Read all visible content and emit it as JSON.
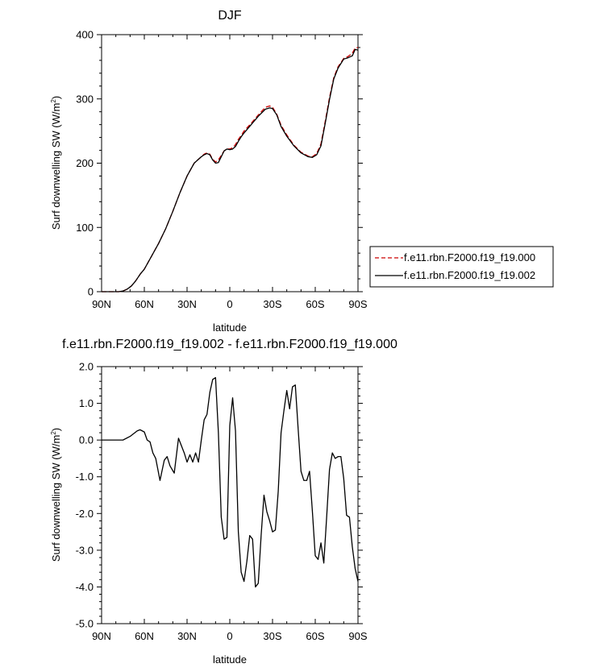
{
  "chart_data": [
    {
      "type": "line",
      "title": "DJF",
      "xlabel": "latitude",
      "ylabel": "Surf downwelling SW (W/m²)",
      "ylabel_main": "Surf downwelling SW (W/m",
      "ylabel_sup": "2",
      "ylabel_end": ")",
      "xlim": [
        -90,
        90
      ],
      "ylim": [
        0,
        400
      ],
      "x_ticks": [
        -90,
        -60,
        -30,
        0,
        30,
        60,
        90
      ],
      "x_tick_labels": [
        "90N",
        "60N",
        "30N",
        "0",
        "30S",
        "60S",
        "90S"
      ],
      "y_ticks": [
        0,
        100,
        200,
        300,
        400
      ],
      "y_tick_labels": [
        "0",
        "100",
        "200",
        "300",
        "400"
      ],
      "legend_position": "right",
      "series": [
        {
          "name": "f.e11.rbn.F2000.f19_f19.000",
          "color": "#cc0000",
          "dash": "dashed",
          "x": [
            -90,
            -85,
            -80,
            -78,
            -75,
            -72,
            -69,
            -66,
            -63,
            -60,
            -55,
            -50,
            -45,
            -40,
            -35,
            -30,
            -25,
            -20,
            -18,
            -16,
            -14,
            -12,
            -10,
            -8,
            -6,
            -4,
            -2,
            0,
            2,
            4,
            6,
            8,
            10,
            15,
            20,
            25,
            28,
            30,
            33,
            36,
            40,
            45,
            50,
            55,
            58,
            61,
            64,
            67,
            70,
            73,
            76,
            80,
            83,
            86,
            88,
            90
          ],
          "y": [
            0,
            0,
            0,
            0,
            1,
            4,
            9,
            17,
            27,
            35,
            55,
            75,
            98,
            125,
            154,
            180,
            200,
            210,
            214,
            216,
            214,
            206,
            202,
            205,
            212,
            219,
            222,
            222,
            224,
            229,
            237,
            243,
            250,
            262,
            275,
            287,
            289,
            287,
            276,
            259,
            244,
            228,
            217,
            211,
            210,
            215,
            230,
            265,
            302,
            333,
            350,
            363,
            366,
            371,
            379,
            380
          ]
        },
        {
          "name": "f.e11.rbn.F2000.f19_f19.002",
          "color": "#000000",
          "dash": "solid",
          "x": [
            -90,
            -85,
            -80,
            -78,
            -75,
            -72,
            -69,
            -66,
            -63,
            -60,
            -55,
            -50,
            -45,
            -40,
            -35,
            -30,
            -25,
            -20,
            -18,
            -16,
            -14,
            -12,
            -10,
            -8,
            -6,
            -4,
            -2,
            0,
            2,
            4,
            6,
            8,
            10,
            15,
            20,
            25,
            28,
            30,
            33,
            36,
            40,
            45,
            50,
            55,
            58,
            61,
            64,
            67,
            70,
            73,
            76,
            80,
            83,
            86,
            88,
            90
          ],
          "y": [
            0,
            0,
            0,
            0,
            1,
            4,
            9,
            17,
            27,
            35,
            55,
            75,
            98,
            125,
            154,
            180,
            200,
            210,
            213,
            215,
            213,
            205,
            200,
            201,
            210,
            219,
            222,
            221,
            222,
            226,
            234,
            241,
            247,
            260,
            273,
            284,
            286,
            285,
            275,
            257,
            242,
            227,
            216,
            210,
            209,
            213,
            227,
            262,
            299,
            331,
            348,
            362,
            364,
            367,
            377,
            376
          ]
        }
      ]
    },
    {
      "type": "line",
      "title": "f.e11.rbn.F2000.f19_f19.002 - f.e11.rbn.F2000.f19_f19.000",
      "xlabel": "latitude",
      "ylabel": "Surf downwelling SW (W/m²)",
      "ylabel_main": "Surf downwelling SW (W/m",
      "ylabel_sup": "2",
      "ylabel_end": ")",
      "xlim": [
        -90,
        90
      ],
      "ylim": [
        -5,
        2
      ],
      "x_ticks": [
        -90,
        -60,
        -30,
        0,
        30,
        60,
        90
      ],
      "x_tick_labels": [
        "90N",
        "60N",
        "30N",
        "0",
        "30S",
        "60S",
        "90S"
      ],
      "y_ticks": [
        -5,
        -4,
        -3,
        -2,
        -1,
        0,
        1,
        2
      ],
      "y_tick_labels": [
        "-5.0",
        "-4.0",
        "-3.0",
        "-2.0",
        "-1.0",
        "0.0",
        "1.0",
        "2.0"
      ],
      "series": [
        {
          "color": "#000000",
          "x": [
            -90,
            -75,
            -70,
            -65,
            -63,
            -60,
            -58,
            -56,
            -54,
            -52,
            -49,
            -46,
            -44,
            -42,
            -39,
            -36,
            -34,
            -32,
            -30,
            -28,
            -26,
            -24,
            -22,
            -20,
            -18,
            -16,
            -14,
            -12,
            -10,
            -8,
            -6,
            -4,
            -2,
            0,
            2,
            4,
            6,
            8,
            10,
            12,
            14,
            16,
            18,
            20,
            22,
            24,
            26,
            28,
            30,
            32,
            34,
            36,
            38,
            40,
            42,
            44,
            46,
            48,
            50,
            52,
            54,
            56,
            58,
            60,
            62,
            64,
            66,
            68,
            70,
            72,
            74,
            76,
            78,
            80,
            82,
            84,
            86,
            88,
            90
          ],
          "y": [
            0,
            0,
            0.1,
            0.25,
            0.28,
            0.22,
            0.0,
            -0.05,
            -0.35,
            -0.5,
            -1.1,
            -0.55,
            -0.45,
            -0.7,
            -0.9,
            0.05,
            -0.15,
            -0.35,
            -0.6,
            -0.4,
            -0.6,
            -0.35,
            -0.6,
            0.0,
            0.55,
            0.7,
            1.3,
            1.65,
            1.7,
            0.2,
            -2.1,
            -2.7,
            -2.65,
            0.4,
            1.15,
            0.25,
            -2.5,
            -3.6,
            -3.85,
            -3.3,
            -2.6,
            -2.7,
            -4.0,
            -3.9,
            -2.6,
            -1.5,
            -1.95,
            -2.2,
            -2.5,
            -2.45,
            -1.4,
            0.2,
            0.8,
            1.35,
            0.85,
            1.45,
            1.5,
            0.3,
            -0.85,
            -1.1,
            -1.1,
            -0.85,
            -1.95,
            -3.15,
            -3.25,
            -2.8,
            -3.35,
            -2.1,
            -0.8,
            -0.35,
            -0.5,
            -0.45,
            -0.45,
            -1.05,
            -2.05,
            -2.1,
            -2.9,
            -3.5,
            -3.85
          ]
        }
      ]
    }
  ]
}
